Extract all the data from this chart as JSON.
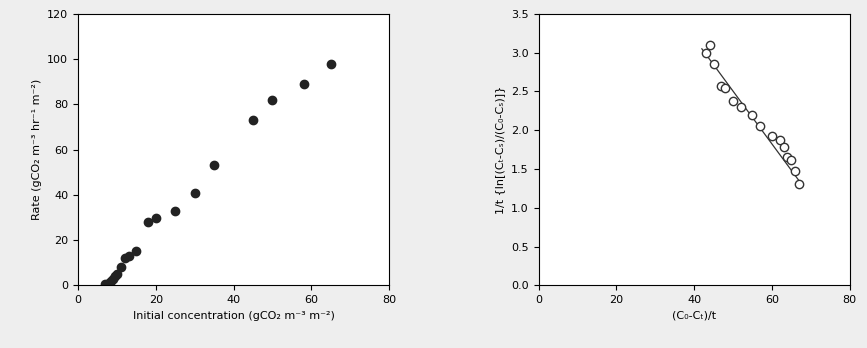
{
  "plot1": {
    "x": [
      7,
      8,
      8.5,
      9,
      9.5,
      10,
      11,
      12,
      13,
      15,
      18,
      20,
      25,
      30,
      35,
      45,
      50,
      58,
      65
    ],
    "y": [
      0.5,
      1,
      2,
      3,
      4,
      5,
      8,
      12,
      13,
      15,
      28,
      30,
      33,
      41,
      53,
      73,
      82,
      89,
      98
    ],
    "xlabel": "Initial concentration (gCO₂ m⁻³ m⁻²)",
    "ylabel": "Rate (gCO₂ m⁻³ hr⁻¹ m⁻²)",
    "xlim": [
      0,
      80
    ],
    "ylim": [
      0,
      120
    ],
    "xticks": [
      0,
      20,
      40,
      60,
      80
    ],
    "yticks": [
      0,
      20,
      40,
      60,
      80,
      100,
      120
    ],
    "markersize": 6,
    "markerfacecolor": "#222222",
    "markeredgecolor": "#222222"
  },
  "plot2": {
    "x": [
      43,
      44,
      45,
      47,
      48,
      50,
      52,
      55,
      57,
      60,
      62,
      63,
      64,
      65,
      66,
      67
    ],
    "y": [
      3.0,
      3.1,
      2.85,
      2.57,
      2.55,
      2.38,
      2.3,
      2.2,
      2.05,
      1.93,
      1.87,
      1.79,
      1.65,
      1.62,
      1.48,
      1.31
    ],
    "line_x": [
      42,
      68
    ],
    "line_y": [
      3.05,
      1.28
    ],
    "xlabel": "(C₀-Cₜ)/t",
    "ylabel": "1/t {ln[(Cₜ-Cₛ)/(C₀-Cₛ)]}",
    "xlim": [
      0,
      80
    ],
    "ylim": [
      0,
      3.5
    ],
    "xticks": [
      0,
      20,
      40,
      60,
      80
    ],
    "yticks": [
      0,
      0.5,
      1.0,
      1.5,
      2.0,
      2.5,
      3.0,
      3.5
    ],
    "markersize": 6,
    "markerfacecolor": "white",
    "markeredgecolor": "#333333",
    "linecolor": "#333333"
  },
  "background_color": "#eeeeee",
  "plot_bg": "#ffffff"
}
